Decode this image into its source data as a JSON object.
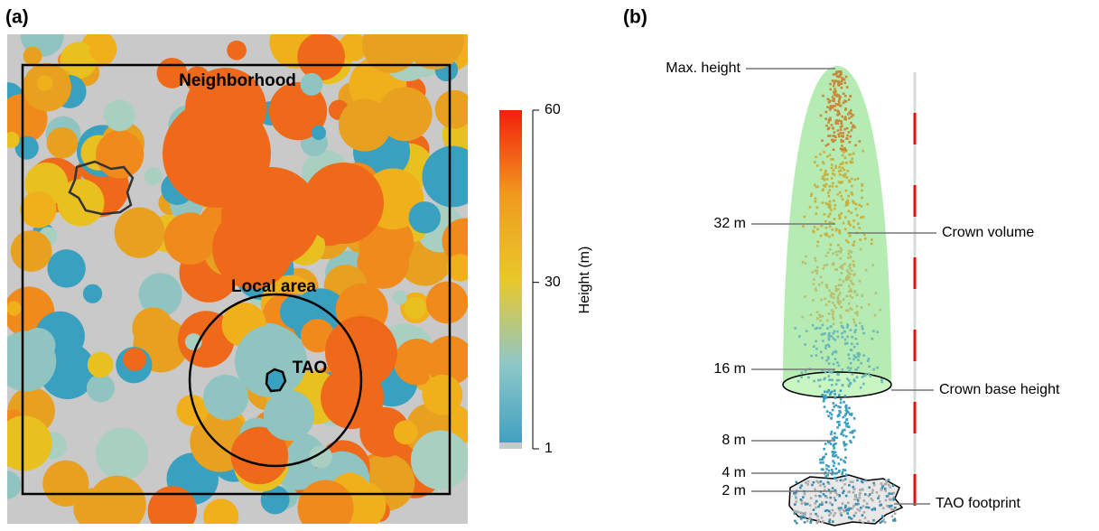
{
  "panel_a": {
    "label": "(a)",
    "annotations": {
      "neighborhood": "Neighborhood",
      "local_area": "Local area",
      "tao": "TAO"
    },
    "colorbar": {
      "title": "Height (m)",
      "lim": [
        1,
        60
      ],
      "ticks": [
        1,
        30,
        60
      ]
    }
  },
  "panel_b": {
    "label": "(b)",
    "left_labels": [
      "Max. height",
      "32 m",
      "16 m",
      "8 m",
      "4 m",
      "2 m"
    ],
    "right_labels": [
      "Crown volume",
      "Crown base height",
      "TAO footprint"
    ]
  }
}
